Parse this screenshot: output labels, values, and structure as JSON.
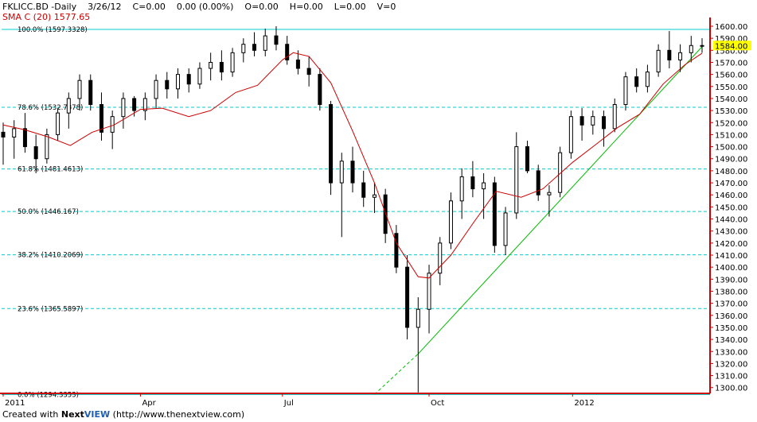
{
  "header": {
    "symbol": "FKLICC.BD -Daily",
    "date": "3/26/12",
    "close": "C=0.00",
    "change": "0.00 (0.00%)",
    "open": "O=0.00",
    "high": "H=0.00",
    "low": "L=0.00",
    "volume": "V=0",
    "sma_label": "SMA C (20) 1577.65"
  },
  "footer": {
    "prefix": "Created with ",
    "brand_next": "Next",
    "brand_view": "VIEW",
    "url": " (http://www.thenextview.com)"
  },
  "colors": {
    "background": "#ffffff",
    "candle": "#000000",
    "sma": "#cc0000",
    "trendline": "#00bb00",
    "fib_line": "#00cccc",
    "axis": "#cc0000",
    "last_price_bg": "#ffff00"
  },
  "chart_data": {
    "type": "candlestick",
    "title": "FKLICC.BD -Daily",
    "ylim": [
      1294.3353,
      1600
    ],
    "y_ticks": [
      1300,
      1310,
      1320,
      1330,
      1340,
      1350,
      1360,
      1370,
      1380,
      1390,
      1400,
      1410,
      1420,
      1430,
      1440,
      1450,
      1460,
      1470,
      1480,
      1490,
      1500,
      1510,
      1520,
      1530,
      1540,
      1550,
      1560,
      1570,
      1580,
      1590,
      1600
    ],
    "y_tick_labels": [
      "1300.00",
      "1310.00",
      "1320.00",
      "1330.00",
      "1340.00",
      "1350.00",
      "1360.00",
      "1370.00",
      "1380.00",
      "1390.00",
      "1400.00",
      "1410.00",
      "1420.00",
      "1430.00",
      "1440.00",
      "1450.00",
      "1460.00",
      "1470.00",
      "1480.00",
      "1490.00",
      "1500.00",
      "1510.00",
      "1520.00",
      "1530.00",
      "1540.00",
      "1550.00",
      "1560.00",
      "1570.00",
      "1580.00",
      "1590.00",
      "1600.00"
    ],
    "x_labels": [
      {
        "label": "2011",
        "date": "2011-01-03"
      },
      {
        "label": "Apr",
        "date": "2011-04-01"
      },
      {
        "label": "Jul",
        "date": "2011-07-01"
      },
      {
        "label": "Oct",
        "date": "2011-10-03"
      },
      {
        "label": "2012",
        "date": "2012-01-03"
      }
    ],
    "last_price": "1584.00",
    "fibonacci": [
      {
        "label": "100.0% (1597.3328)",
        "value": 1597.3328
      },
      {
        "label": "78.6% (1532.7378)",
        "value": 1532.7378
      },
      {
        "label": "61.8% (1481.4613)",
        "value": 1481.4613
      },
      {
        "label": "50.0% (1446.167)",
        "value": 1446.167
      },
      {
        "label": "38.2% (1410.2069)",
        "value": 1410.2069
      },
      {
        "label": "23.6% (1365.5897)",
        "value": 1365.5897
      },
      {
        "label": "0.0% (1294.3353)",
        "value": 1294.3353
      }
    ],
    "trendline": {
      "x": [
        "2011-09-26",
        "2012-03-26"
      ],
      "y": [
        1328,
        1583
      ],
      "extension_start": {
        "x": "2011-08-29",
        "y": 1294.3353
      }
    },
    "series": [
      {
        "name": "SMA C (20)",
        "x": [
          "2011-01-03",
          "2011-01-17",
          "2011-02-01",
          "2011-02-15",
          "2011-03-01",
          "2011-03-15",
          "2011-04-01",
          "2011-04-15",
          "2011-05-02",
          "2011-05-16",
          "2011-06-01",
          "2011-06-15",
          "2011-07-01",
          "2011-07-08",
          "2011-07-18",
          "2011-08-01",
          "2011-08-15",
          "2011-08-29",
          "2011-09-12",
          "2011-09-26",
          "2011-10-03",
          "2011-10-17",
          "2011-11-01",
          "2011-11-15",
          "2011-12-01",
          "2011-12-15",
          "2012-01-03",
          "2012-01-17",
          "2012-02-01",
          "2012-02-15",
          "2012-03-01",
          "2012-03-15",
          "2012-03-26"
        ],
        "y": [
          1518,
          1514,
          1508,
          1501,
          1512,
          1518,
          1531,
          1532,
          1525,
          1530,
          1545,
          1551,
          1572,
          1578,
          1575,
          1553,
          1513,
          1470,
          1420,
          1392,
          1391,
          1410,
          1438,
          1463,
          1458,
          1465,
          1487,
          1501,
          1516,
          1527,
          1552,
          1568,
          1577.65
        ]
      }
    ],
    "candles": {
      "columns": [
        "date",
        "open",
        "high",
        "low",
        "close"
      ],
      "rows": [
        [
          "2011-01-03",
          1512,
          1520,
          1485,
          1508
        ],
        [
          "2011-01-10",
          1508,
          1522,
          1490,
          1515
        ],
        [
          "2011-01-17",
          1515,
          1528,
          1495,
          1500
        ],
        [
          "2011-01-24",
          1500,
          1510,
          1478,
          1490
        ],
        [
          "2011-01-31",
          1490,
          1515,
          1486,
          1510
        ],
        [
          "2011-02-07",
          1510,
          1532,
          1505,
          1528
        ],
        [
          "2011-02-14",
          1528,
          1545,
          1515,
          1540
        ],
        [
          "2011-02-21",
          1540,
          1560,
          1530,
          1555
        ],
        [
          "2011-02-28",
          1555,
          1560,
          1530,
          1535
        ],
        [
          "2011-03-07",
          1535,
          1545,
          1505,
          1512
        ],
        [
          "2011-03-14",
          1512,
          1530,
          1498,
          1525
        ],
        [
          "2011-03-21",
          1525,
          1545,
          1515,
          1540
        ],
        [
          "2011-03-28",
          1540,
          1542,
          1525,
          1530
        ],
        [
          "2011-04-04",
          1530,
          1545,
          1522,
          1540
        ],
        [
          "2011-04-11",
          1540,
          1560,
          1532,
          1555
        ],
        [
          "2011-04-18",
          1555,
          1562,
          1540,
          1548
        ],
        [
          "2011-04-25",
          1548,
          1565,
          1540,
          1560
        ],
        [
          "2011-05-02",
          1560,
          1565,
          1545,
          1552
        ],
        [
          "2011-05-09",
          1552,
          1570,
          1548,
          1565
        ],
        [
          "2011-05-16",
          1565,
          1578,
          1555,
          1570
        ],
        [
          "2011-05-23",
          1570,
          1580,
          1555,
          1562
        ],
        [
          "2011-05-30",
          1562,
          1582,
          1558,
          1578
        ],
        [
          "2011-06-06",
          1578,
          1590,
          1570,
          1585
        ],
        [
          "2011-06-13",
          1585,
          1595,
          1575,
          1580
        ],
        [
          "2011-06-20",
          1580,
          1598,
          1575,
          1592
        ],
        [
          "2011-06-27",
          1592,
          1600,
          1580,
          1585
        ],
        [
          "2011-07-04",
          1585,
          1592,
          1568,
          1572
        ],
        [
          "2011-07-11",
          1572,
          1580,
          1560,
          1565
        ],
        [
          "2011-07-18",
          1565,
          1575,
          1550,
          1560
        ],
        [
          "2011-07-25",
          1560,
          1565,
          1530,
          1535
        ],
        [
          "2011-08-01",
          1535,
          1538,
          1460,
          1470
        ],
        [
          "2011-08-08",
          1470,
          1495,
          1425,
          1488
        ],
        [
          "2011-08-15",
          1488,
          1500,
          1462,
          1470
        ],
        [
          "2011-08-22",
          1470,
          1480,
          1450,
          1458
        ],
        [
          "2011-08-29",
          1458,
          1470,
          1445,
          1460
        ],
        [
          "2011-09-05",
          1460,
          1465,
          1420,
          1428
        ],
        [
          "2011-09-12",
          1428,
          1435,
          1395,
          1400
        ],
        [
          "2011-09-19",
          1400,
          1410,
          1340,
          1350
        ],
        [
          "2011-09-26",
          1350,
          1375,
          1296,
          1365
        ],
        [
          "2011-10-03",
          1365,
          1402,
          1345,
          1395
        ],
        [
          "2011-10-10",
          1395,
          1425,
          1385,
          1420
        ],
        [
          "2011-10-17",
          1420,
          1462,
          1415,
          1455
        ],
        [
          "2011-10-24",
          1455,
          1482,
          1440,
          1475
        ],
        [
          "2011-10-31",
          1475,
          1488,
          1458,
          1465
        ],
        [
          "2011-11-07",
          1465,
          1478,
          1440,
          1470
        ],
        [
          "2011-11-14",
          1470,
          1475,
          1412,
          1418
        ],
        [
          "2011-11-21",
          1418,
          1450,
          1410,
          1445
        ],
        [
          "2011-11-28",
          1445,
          1512,
          1440,
          1500
        ],
        [
          "2011-12-05",
          1500,
          1505,
          1478,
          1480
        ],
        [
          "2011-12-12",
          1480,
          1485,
          1455,
          1460
        ],
        [
          "2011-12-19",
          1460,
          1468,
          1442,
          1462
        ],
        [
          "2011-12-26",
          1462,
          1500,
          1458,
          1495
        ],
        [
          "2012-01-02",
          1495,
          1530,
          1490,
          1525
        ],
        [
          "2012-01-09",
          1525,
          1532,
          1505,
          1518
        ],
        [
          "2012-01-16",
          1518,
          1530,
          1510,
          1525
        ],
        [
          "2012-01-23",
          1525,
          1530,
          1500,
          1515
        ],
        [
          "2012-01-30",
          1515,
          1540,
          1512,
          1535
        ],
        [
          "2012-02-06",
          1535,
          1562,
          1530,
          1558
        ],
        [
          "2012-02-13",
          1558,
          1565,
          1545,
          1550
        ],
        [
          "2012-02-20",
          1550,
          1568,
          1545,
          1562
        ],
        [
          "2012-02-27",
          1562,
          1585,
          1558,
          1580
        ],
        [
          "2012-03-05",
          1580,
          1596,
          1565,
          1572
        ],
        [
          "2012-03-12",
          1572,
          1585,
          1562,
          1578
        ],
        [
          "2012-03-19",
          1578,
          1592,
          1570,
          1584
        ],
        [
          "2012-03-26",
          1584,
          1590,
          1578,
          1584
        ]
      ]
    }
  }
}
